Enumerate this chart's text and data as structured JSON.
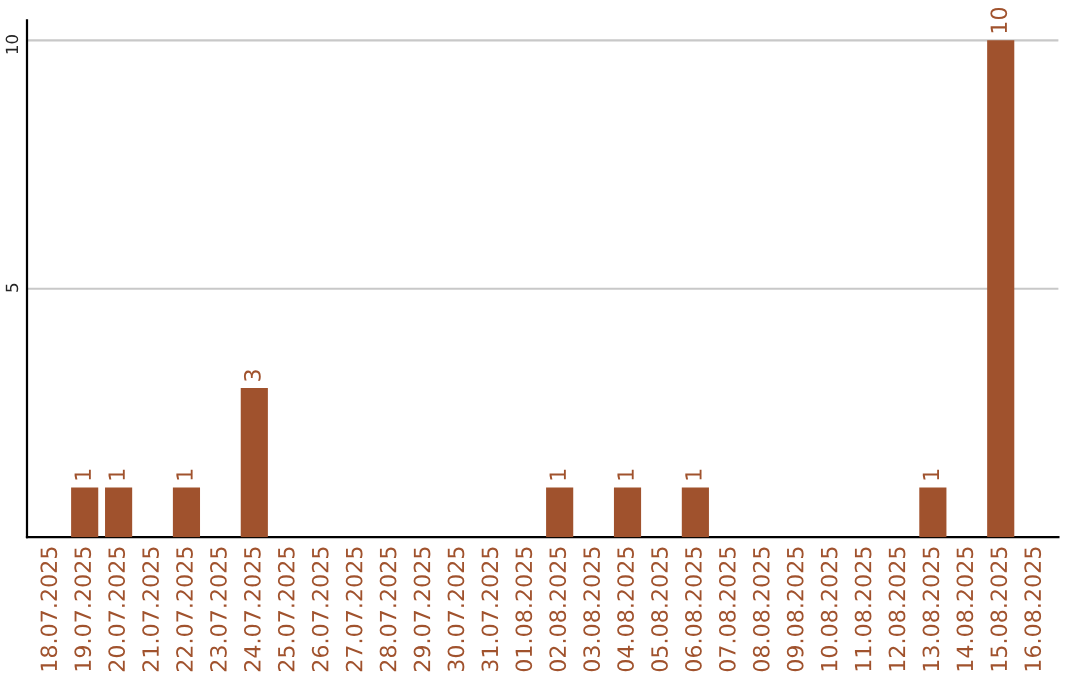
{
  "chart_data": {
    "type": "bar",
    "categories": [
      "18.07.2025",
      "19.07.2025",
      "20.07.2025",
      "21.07.2025",
      "22.07.2025",
      "23.07.2025",
      "24.07.2025",
      "25.07.2025",
      "26.07.2025",
      "27.07.2025",
      "28.07.2025",
      "29.07.2025",
      "30.07.2025",
      "31.07.2025",
      "01.08.2025",
      "02.08.2025",
      "03.08.2025",
      "04.08.2025",
      "05.08.2025",
      "06.08.2025",
      "07.08.2025",
      "08.08.2025",
      "09.08.2025",
      "10.08.2025",
      "11.08.2025",
      "12.08.2025",
      "13.08.2025",
      "14.08.2025",
      "15.08.2025",
      "16.08.2025"
    ],
    "values": [
      0,
      1,
      1,
      0,
      1,
      0,
      3,
      0,
      0,
      0,
      0,
      0,
      0,
      0,
      0,
      1,
      0,
      1,
      0,
      1,
      0,
      0,
      0,
      0,
      0,
      0,
      1,
      0,
      10,
      0
    ],
    "value_labels": [
      null,
      "1",
      "1",
      null,
      "1",
      null,
      "3",
      null,
      null,
      null,
      null,
      null,
      null,
      null,
      null,
      "1",
      null,
      "1",
      null,
      "1",
      null,
      null,
      null,
      null,
      null,
      null,
      "1",
      null,
      "10",
      null
    ],
    "color": "#a0522d",
    "ylim": [
      0,
      10.4
    ],
    "yticks": [
      5,
      10
    ],
    "grid": "y",
    "legend": false
  }
}
